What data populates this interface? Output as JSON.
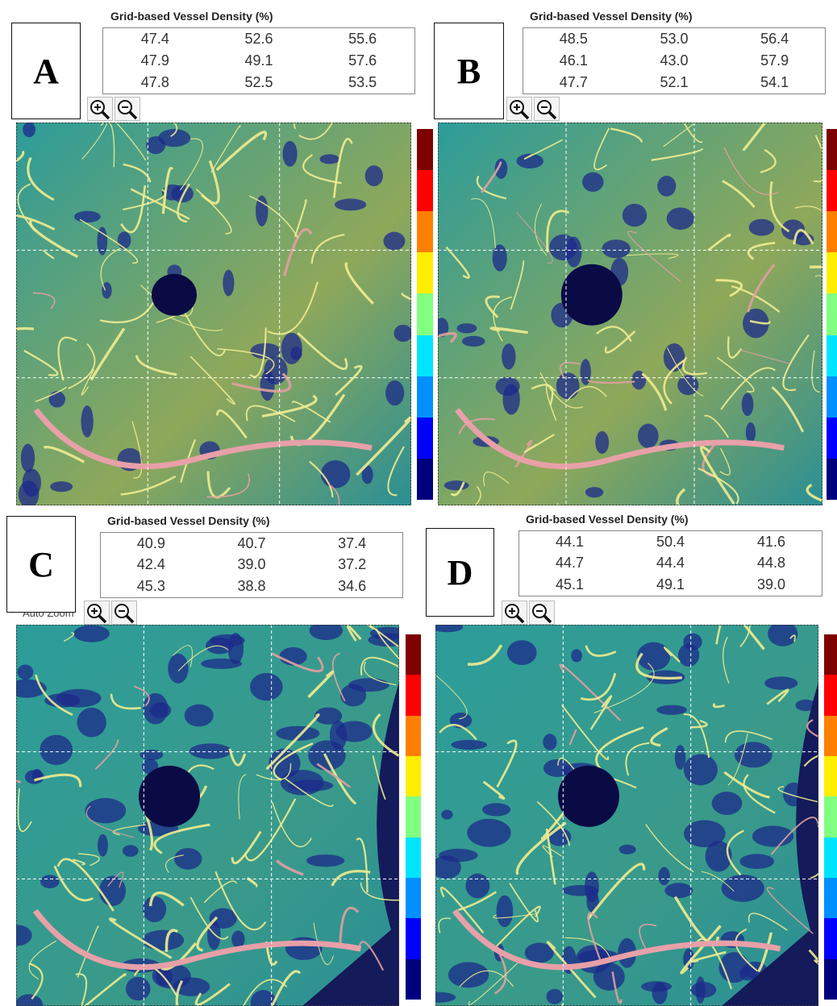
{
  "panels": [
    {
      "label": "A",
      "table_title": "Grid-based Vessel Density (%)",
      "rows": [
        [
          "47.4",
          "52.6",
          "55.6"
        ],
        [
          "47.9",
          "49.1",
          "57.6"
        ],
        [
          "47.8",
          "52.5",
          "53.5"
        ]
      ]
    },
    {
      "label": "B",
      "table_title": "Grid-based Vessel Density (%)",
      "rows": [
        [
          "48.5",
          "53.0",
          "56.4"
        ],
        [
          "46.1",
          "43.0",
          "57.9"
        ],
        [
          "47.7",
          "52.1",
          "54.1"
        ]
      ]
    },
    {
      "label": "C",
      "table_title": "Grid-based Vessel Density (%)",
      "rows": [
        [
          "40.9",
          "40.7",
          "37.4"
        ],
        [
          "42.4",
          "39.0",
          "37.2"
        ],
        [
          "45.3",
          "38.8",
          "34.6"
        ]
      ],
      "zoom_label": "Auto Zoom"
    },
    {
      "label": "D",
      "table_title": "Grid-based Vessel Density (%)",
      "rows": [
        [
          "44.1",
          "50.4",
          "41.6"
        ],
        [
          "44.7",
          "44.4",
          "44.8"
        ],
        [
          "45.1",
          "49.1",
          "39.0"
        ]
      ]
    }
  ]
}
